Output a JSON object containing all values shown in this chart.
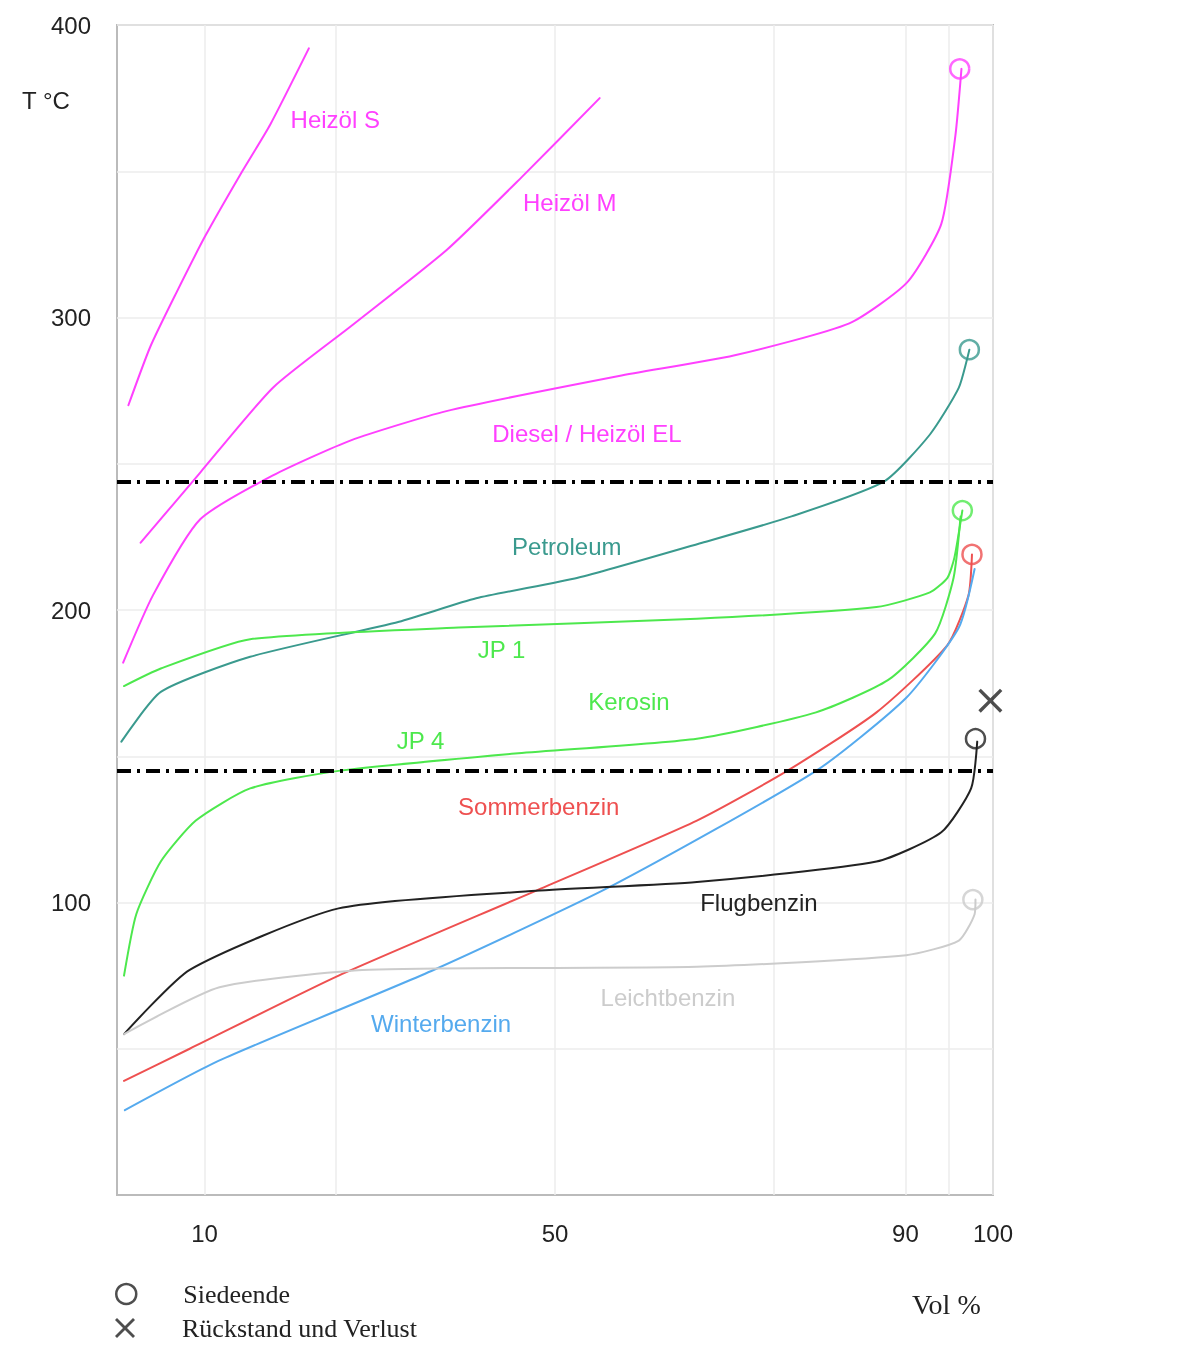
{
  "chart_data": {
    "type": "line",
    "xlabel": "Vol %",
    "ylabel": "T °C",
    "xlim": [
      0,
      100
    ],
    "ylim": [
      0,
      400
    ],
    "xticks": [
      10,
      {
        "value": 25,
        "label": null
      },
      50,
      {
        "value": 75,
        "label": null
      },
      90,
      {
        "value": 95,
        "label": null
      },
      100
    ],
    "yticks": [
      {
        "value": 50,
        "label": null
      },
      100,
      {
        "value": 150,
        "label": null
      },
      200,
      {
        "value": 250,
        "label": null
      },
      300,
      {
        "value": 350,
        "label": null
      },
      400
    ],
    "grid": true,
    "legend": "bottom left",
    "marker": "none",
    "line_style": "solid",
    "ref_lines": [
      {
        "axis": "y",
        "value": 244,
        "color": "#000000",
        "line_style": "dashed"
      },
      {
        "axis": "y",
        "value": 145,
        "color": "#000000",
        "line_style": "dashed"
      }
    ],
    "annotations": [
      {
        "text": "Kerosin",
        "x": 66.2,
        "y": 156
      }
    ],
    "series": [
      {
        "name": "Heizöl S",
        "color": "#ff40ff",
        "x": [
          1.3,
          3.8,
          6.7,
          10.1,
          14.1,
          17.5,
          21.9
        ],
        "values": [
          270,
          290,
          308,
          328,
          349,
          366,
          392
        ]
      },
      {
        "name": "Heizöl M",
        "color": "#ff40ff",
        "x": [
          2.7,
          9.5,
          17.8,
          26.7,
          37.6,
          46.2,
          55.1
        ],
        "values": [
          223,
          247,
          276,
          297,
          323,
          348,
          375
        ]
      },
      {
        "name": "Diesel / Heizöl EL",
        "color": "#ff40ff",
        "x": [
          0.7,
          4.1,
          9.5,
          17.8,
          26.7,
          37.6,
          57.3,
          70.4,
          83.6,
          90.2,
          94.1,
          95.7,
          96.4
        ],
        "values": [
          182,
          205,
          231,
          246,
          258,
          268,
          280,
          287,
          298,
          312,
          332,
          362,
          385
        ]
      },
      {
        "name": "Petroleum",
        "color": "#3a9a8e",
        "x": [
          0.5,
          5,
          15.2,
          32.2,
          41,
          52.6,
          66.8,
          77,
          87.6,
          92.8,
          96.1,
          97.3
        ],
        "values": [
          155,
          172,
          184,
          196,
          204,
          211,
          223,
          232,
          244,
          260,
          276,
          289
        ]
      },
      {
        "name": "JP 1",
        "color": "#4de84d",
        "x": [
          0.8,
          5,
          15.2,
          39,
          66.2,
          86.7,
          92.8,
          94.8,
          95.6,
          96.5
        ],
        "values": [
          174,
          180,
          190,
          194,
          197,
          201,
          206,
          211,
          218,
          234
        ]
      },
      {
        "name": "JP 4",
        "color": "#4de84d",
        "x": [
          0.8,
          2.2,
          5,
          9,
          15.2,
          25.3,
          45.8,
          66.2,
          79.8,
          88,
          93.4,
          95.5,
          96.3
        ],
        "values": [
          75,
          96,
          114,
          128,
          139,
          145,
          151,
          156,
          165,
          176,
          192,
          211,
          232
        ]
      },
      {
        "name": "Sommerbenzin",
        "color": "#ee5050",
        "x": [
          0.8,
          8.3,
          25.3,
          47.8,
          66.2,
          76.5,
          86.7,
          94.8,
          97.2,
          97.6
        ],
        "values": [
          39,
          50,
          75,
          104,
          128,
          145,
          165,
          188,
          205,
          219
        ]
      },
      {
        "name": "Winterbenzin",
        "color": "#55aaee",
        "x": [
          0.9,
          11.7,
          36.2,
          56.7,
          79.8,
          90.1,
          96.1,
          97.9
        ],
        "values": [
          29,
          46,
          77,
          106,
          145,
          170,
          194,
          214
        ]
      },
      {
        "name": "Flugbenzin",
        "color": "#222222",
        "x": [
          0.8,
          8.3,
          25.3,
          47.8,
          66.2,
          86.7,
          94.1,
          97.5,
          98.2
        ],
        "values": [
          55,
          77,
          98,
          104,
          107,
          114,
          124,
          139,
          155
        ]
      },
      {
        "name": "Leichtbenzin",
        "color": "#cccccc",
        "x": [
          0.8,
          11.7,
          28.8,
          66.2,
          90.1,
          96.1,
          97.9,
          98
        ],
        "values": [
          55,
          71,
          77,
          78,
          82,
          87,
          96,
          101
        ]
      },
      {
        "name": "Siedeende",
        "type": "scatter",
        "marker": "circle",
        "color": "#222222",
        "colors": [
          "#ff40ff",
          "#3a9a8e",
          "#4de84d",
          "#ee5050",
          "#222222",
          "#cccccc"
        ],
        "x": [
          96.2,
          97.3,
          96.5,
          97.6,
          98,
          97.7
        ],
        "values": [
          385,
          289,
          234,
          219,
          156,
          101
        ]
      },
      {
        "name": "Rückstand und Verlust",
        "type": "scatter",
        "marker": "cross",
        "color": "#222222",
        "x": [
          99.7
        ],
        "values": [
          169
        ]
      }
    ]
  }
}
